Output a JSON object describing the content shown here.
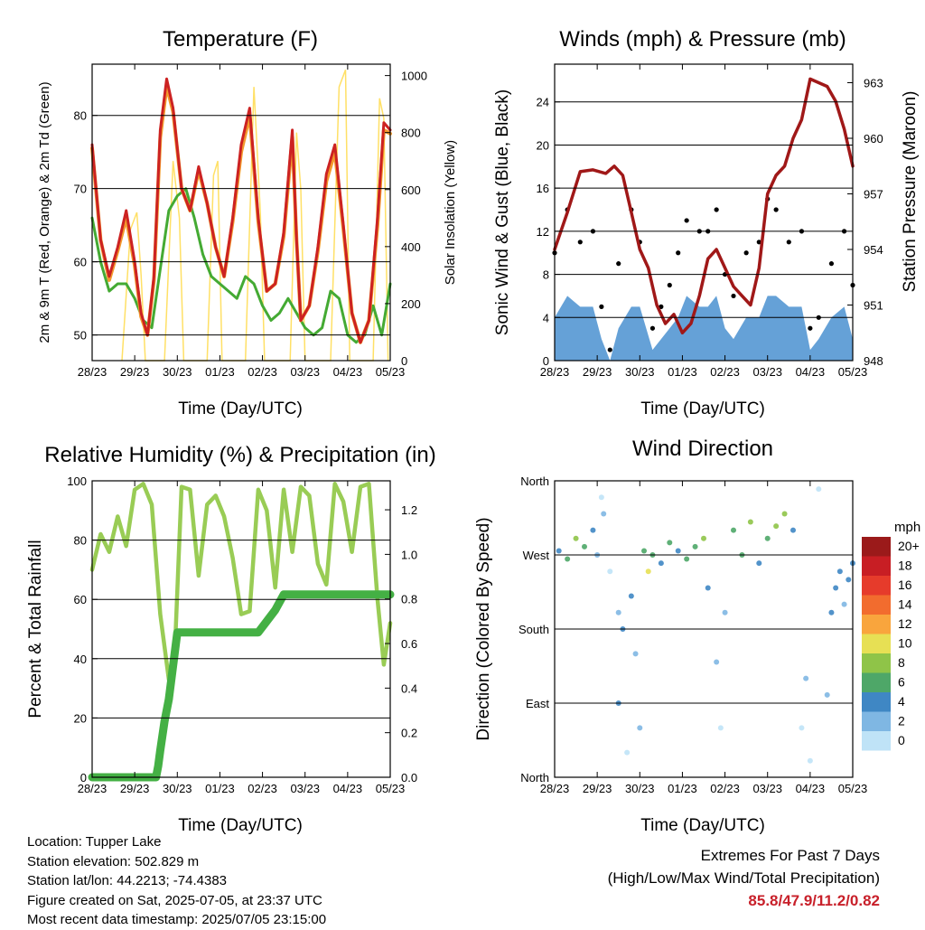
{
  "colors": {
    "temp_red": "#cc2222",
    "temp_orange": "#f39a2d",
    "dewpoint_green": "#44aa33",
    "solar_yellow": "#ffe066",
    "wind_blue": "#4a90d0",
    "gust_black": "#000000",
    "pressure_maroon": "#a01818",
    "rh_lightgreen": "#99cc55",
    "precip_green": "#44b044",
    "extremes_red": "#c8202a"
  },
  "chart_data": [
    {
      "type": "line",
      "title": "Temperature (F)",
      "xlabel": "Time (Day/UTC)",
      "ylabel": "2m & 9m T (Red, Orange) & 2m Td (Green)",
      "y2label": "Solar Insolation (Yellow)",
      "x_ticks": [
        "28/23",
        "29/23",
        "30/23",
        "01/23",
        "02/23",
        "03/23",
        "04/23",
        "05/23"
      ],
      "y_ticks": [
        50,
        60,
        70,
        80
      ],
      "y2_ticks": [
        0,
        200,
        400,
        600,
        800,
        1000
      ],
      "ylim": [
        46.5,
        87
      ],
      "y2lim": [
        0,
        1040
      ],
      "grid": true,
      "series": [
        {
          "name": "2m T",
          "color": "#cc2222",
          "x": [
            0,
            0.2,
            0.4,
            0.6,
            0.8,
            1.0,
            1.15,
            1.3,
            1.45,
            1.6,
            1.75,
            1.9,
            2.1,
            2.3,
            2.5,
            2.7,
            2.9,
            3.1,
            3.3,
            3.5,
            3.7,
            3.9,
            4.1,
            4.3,
            4.5,
            4.7,
            4.8,
            4.9,
            5.1,
            5.3,
            5.5,
            5.7,
            5.9,
            6.1,
            6.3,
            6.5,
            6.7,
            6.85,
            7.0
          ],
          "y": [
            76,
            63,
            58,
            62,
            67,
            60,
            53,
            50,
            58,
            78,
            85,
            81,
            70,
            67,
            73,
            68,
            62,
            58,
            66,
            76,
            81,
            66,
            56,
            57,
            64,
            78,
            63,
            52,
            54,
            62,
            72,
            76,
            65,
            53,
            49,
            52,
            66,
            79,
            78
          ]
        },
        {
          "name": "9m T",
          "color": "#f39a2d",
          "x": [
            0,
            0.2,
            0.4,
            0.6,
            0.8,
            1.0,
            1.15,
            1.3,
            1.45,
            1.6,
            1.75,
            1.9,
            2.1,
            2.3,
            2.5,
            2.7,
            2.9,
            3.1,
            3.3,
            3.5,
            3.7,
            3.9,
            4.1,
            4.3,
            4.5,
            4.7,
            4.8,
            4.9,
            5.1,
            5.3,
            5.5,
            5.7,
            5.9,
            6.1,
            6.3,
            6.5,
            6.7,
            6.85,
            7.0
          ],
          "y": [
            75.5,
            63,
            57.5,
            61.5,
            66,
            59.5,
            52.5,
            50,
            57.5,
            77,
            84,
            80.5,
            70,
            67,
            72.5,
            68,
            62,
            58,
            65.5,
            75,
            80,
            65.5,
            56,
            57,
            63.5,
            77,
            63,
            52,
            54,
            61.5,
            71,
            75,
            64.5,
            53,
            49,
            52,
            65,
            78,
            77.5
          ]
        },
        {
          "name": "2m Td",
          "color": "#44aa33",
          "x": [
            0,
            0.2,
            0.4,
            0.6,
            0.8,
            1.0,
            1.2,
            1.4,
            1.6,
            1.8,
            2.0,
            2.2,
            2.4,
            2.6,
            2.8,
            3.0,
            3.2,
            3.4,
            3.6,
            3.8,
            4.0,
            4.2,
            4.4,
            4.6,
            4.8,
            5.0,
            5.2,
            5.4,
            5.6,
            5.8,
            6.0,
            6.2,
            6.4,
            6.6,
            6.8,
            7.0
          ],
          "y": [
            66,
            60,
            56,
            57,
            57,
            55,
            52,
            51,
            59,
            67,
            69,
            70,
            66,
            61,
            58,
            57,
            56,
            55,
            58,
            57,
            54,
            52,
            53,
            55,
            53,
            51,
            50,
            51,
            56,
            55,
            50,
            49,
            50,
            54,
            50,
            57
          ]
        },
        {
          "name": "Solar Insolation",
          "color": "#ffe066",
          "axis": "y2",
          "x": [
            0.7,
            0.9,
            1.05,
            1.15,
            1.25,
            1.7,
            1.9,
            2.05,
            2.15,
            2.7,
            2.85,
            2.95,
            3.05,
            3.6,
            3.8,
            3.95,
            4.05,
            4.65,
            4.8,
            4.9,
            5.0,
            5.6,
            5.8,
            5.95,
            6.05,
            6.6,
            6.75,
            6.85,
            6.95
          ],
          "y": [
            0,
            460,
            520,
            300,
            0,
            0,
            700,
            500,
            0,
            0,
            650,
            700,
            0,
            0,
            960,
            520,
            0,
            0,
            800,
            600,
            0,
            0,
            960,
            1020,
            0,
            0,
            920,
            850,
            0
          ]
        }
      ]
    },
    {
      "type": "line",
      "title": "Winds (mph) & Pressure (mb)",
      "xlabel": "Time (Day/UTC)",
      "ylabel": "Sonic Wind & Gust (Blue, Black)",
      "y2label": "Station Pressure (Maroon)",
      "x_ticks": [
        "28/23",
        "29/23",
        "30/23",
        "01/23",
        "02/23",
        "03/23",
        "04/23",
        "05/23"
      ],
      "y_ticks": [
        0,
        4,
        8,
        12,
        16,
        20,
        24
      ],
      "y2_ticks": [
        948,
        951,
        954,
        957,
        960,
        963
      ],
      "ylim": [
        0,
        27.5
      ],
      "y2lim": [
        948,
        964
      ],
      "grid": true,
      "series": [
        {
          "name": "Sonic Wind",
          "color": "#4a90d0",
          "x": [
            0,
            0.3,
            0.6,
            0.9,
            1.1,
            1.3,
            1.5,
            1.8,
            2.0,
            2.3,
            2.5,
            2.7,
            2.9,
            3.1,
            3.4,
            3.6,
            3.8,
            4.0,
            4.2,
            4.5,
            4.8,
            5.0,
            5.2,
            5.5,
            5.8,
            6.0,
            6.2,
            6.5,
            6.8,
            7.0
          ],
          "y": [
            4,
            6,
            5,
            5,
            2,
            0,
            3,
            5,
            5,
            1,
            2,
            3,
            4,
            6,
            5,
            5,
            6,
            3,
            2,
            4,
            4,
            6,
            6,
            5,
            5,
            1,
            2,
            4,
            5,
            2
          ]
        },
        {
          "name": "Gust",
          "color": "#000000",
          "x": [
            0,
            0.3,
            0.6,
            0.9,
            1.1,
            1.3,
            1.5,
            1.8,
            2.0,
            2.3,
            2.5,
            2.7,
            2.9,
            3.1,
            3.4,
            3.6,
            3.8,
            4.0,
            4.2,
            4.5,
            4.8,
            5.0,
            5.2,
            5.5,
            5.8,
            6.0,
            6.2,
            6.5,
            6.8,
            7.0
          ],
          "y": [
            10,
            14,
            11,
            12,
            5,
            1,
            9,
            14,
            11,
            3,
            5,
            7,
            10,
            13,
            12,
            12,
            14,
            8,
            6,
            10,
            11,
            15,
            14,
            11,
            12,
            3,
            4,
            9,
            12,
            7
          ]
        },
        {
          "name": "Station Pressure",
          "color": "#a01818",
          "axis": "y2",
          "x": [
            0,
            0.3,
            0.6,
            0.9,
            1.2,
            1.4,
            1.6,
            1.8,
            2.0,
            2.2,
            2.4,
            2.6,
            2.8,
            3.0,
            3.2,
            3.4,
            3.6,
            3.8,
            4.0,
            4.2,
            4.4,
            4.6,
            4.8,
            5.0,
            5.2,
            5.4,
            5.6,
            5.8,
            6.0,
            6.2,
            6.4,
            6.6,
            6.8,
            7.0
          ],
          "y": [
            954,
            956,
            958.2,
            958.3,
            958.1,
            958.5,
            958,
            956,
            954,
            953,
            951,
            950,
            950.5,
            949.5,
            950,
            951.5,
            953.5,
            954,
            953,
            952,
            951.5,
            951,
            953,
            957,
            958,
            958.5,
            960,
            961,
            963.2,
            963,
            962.8,
            962,
            960.5,
            958.5
          ]
        }
      ]
    },
    {
      "type": "line",
      "title": "Relative Humidity (%) & Precipitation (in)",
      "xlabel": "Time (Day/UTC)",
      "ylabel": "Percent & Total Rainfall",
      "x_ticks": [
        "28/23",
        "29/23",
        "30/23",
        "01/23",
        "02/23",
        "03/23",
        "04/23",
        "05/23"
      ],
      "y_ticks": [
        0,
        20,
        40,
        60,
        80,
        100
      ],
      "y2_ticks": [
        0.0,
        0.2,
        0.4,
        0.6,
        0.8,
        1.0,
        1.2
      ],
      "ylim": [
        0,
        100
      ],
      "y2lim": [
        0,
        1.33
      ],
      "grid": true,
      "series": [
        {
          "name": "Relative Humidity",
          "color": "#99cc55",
          "x": [
            0,
            0.2,
            0.4,
            0.6,
            0.8,
            1.0,
            1.2,
            1.4,
            1.6,
            1.8,
            1.95,
            2.1,
            2.3,
            2.5,
            2.7,
            2.9,
            3.1,
            3.3,
            3.5,
            3.7,
            3.9,
            4.1,
            4.3,
            4.5,
            4.7,
            4.9,
            5.1,
            5.3,
            5.5,
            5.7,
            5.9,
            6.1,
            6.3,
            6.5,
            6.7,
            6.85,
            7.0
          ],
          "y": [
            70,
            82,
            76,
            88,
            78,
            97,
            99,
            92,
            55,
            33,
            45,
            98,
            97,
            68,
            92,
            95,
            88,
            74,
            55,
            56,
            97,
            90,
            64,
            97,
            76,
            98,
            95,
            72,
            65,
            99,
            93,
            76,
            98,
            99,
            60,
            38,
            52
          ]
        },
        {
          "name": "Total Precipitation",
          "color": "#44b044",
          "axis": "y2",
          "x": [
            0,
            1.3,
            1.5,
            1.55,
            1.6,
            1.7,
            1.8,
            1.9,
            2.0,
            2.1,
            3.0,
            3.9,
            4.1,
            4.3,
            4.5,
            4.6,
            5.0,
            6.0,
            7.0
          ],
          "y": [
            0,
            0,
            0,
            0.05,
            0.12,
            0.25,
            0.35,
            0.5,
            0.65,
            0.65,
            0.65,
            0.65,
            0.7,
            0.75,
            0.82,
            0.82,
            0.82,
            0.82,
            0.82
          ]
        }
      ]
    },
    {
      "type": "scatter",
      "title": "Wind Direction",
      "xlabel": "Time (Day/UTC)",
      "ylabel": "Direction (Colored By Speed)",
      "x_ticks": [
        "28/23",
        "29/23",
        "30/23",
        "01/23",
        "02/23",
        "03/23",
        "04/23",
        "05/23"
      ],
      "y_ticks": [
        "North",
        "East",
        "South",
        "West",
        "North"
      ],
      "ylim": [
        0,
        360
      ],
      "grid": true,
      "legend_title": "mph",
      "legend_position": "right",
      "legend_levels": [
        "20+",
        "18",
        "16",
        "14",
        "12",
        "10",
        "8",
        "6",
        "4",
        "2",
        "0"
      ],
      "legend_colors": [
        "#9b1a1a",
        "#c81e24",
        "#e63b2b",
        "#f26c2e",
        "#f9a53d",
        "#e7e054",
        "#8fc448",
        "#4ea768",
        "#3f87c4",
        "#7fb7e3",
        "#bfe3f7"
      ],
      "points": [
        [
          0.1,
          275,
          4
        ],
        [
          0.3,
          265,
          6
        ],
        [
          0.5,
          290,
          8
        ],
        [
          0.7,
          280,
          6
        ],
        [
          0.9,
          300,
          4
        ],
        [
          1.0,
          270,
          2
        ],
        [
          1.1,
          340,
          0
        ],
        [
          1.15,
          320,
          2
        ],
        [
          1.3,
          250,
          0
        ],
        [
          1.5,
          200,
          2
        ],
        [
          1.5,
          90,
          4
        ],
        [
          1.6,
          180,
          4
        ],
        [
          1.7,
          30,
          0
        ],
        [
          1.8,
          220,
          4
        ],
        [
          1.9,
          150,
          2
        ],
        [
          2.0,
          60,
          2
        ],
        [
          2.1,
          275,
          6
        ],
        [
          2.2,
          250,
          10
        ],
        [
          2.3,
          270,
          6
        ],
        [
          2.5,
          260,
          4
        ],
        [
          2.7,
          285,
          6
        ],
        [
          2.9,
          275,
          4
        ],
        [
          3.1,
          265,
          6
        ],
        [
          3.3,
          280,
          6
        ],
        [
          3.5,
          290,
          8
        ],
        [
          3.6,
          230,
          4
        ],
        [
          3.8,
          140,
          2
        ],
        [
          3.9,
          60,
          0
        ],
        [
          4.0,
          200,
          2
        ],
        [
          4.2,
          300,
          6
        ],
        [
          4.4,
          270,
          6
        ],
        [
          4.6,
          310,
          8
        ],
        [
          4.8,
          260,
          4
        ],
        [
          5.0,
          290,
          6
        ],
        [
          5.2,
          305,
          8
        ],
        [
          5.4,
          320,
          8
        ],
        [
          5.6,
          300,
          4
        ],
        [
          5.8,
          60,
          0
        ],
        [
          5.9,
          120,
          2
        ],
        [
          6.0,
          20,
          0
        ],
        [
          6.2,
          350,
          0
        ],
        [
          6.4,
          100,
          2
        ],
        [
          6.5,
          200,
          4
        ],
        [
          6.6,
          230,
          4
        ],
        [
          6.7,
          250,
          4
        ],
        [
          6.8,
          210,
          2
        ],
        [
          6.9,
          240,
          4
        ],
        [
          7.0,
          260,
          4
        ]
      ]
    }
  ],
  "info": {
    "location": "Location: Tupper Lake",
    "elevation": "Station elevation: 502.829 m",
    "latlon": "Station lat/lon: 44.2213; -74.4383",
    "created": "Figure created on Sat, 2025-07-05, at 23:37 UTC",
    "recent": "Most recent data timestamp: 2025/07/05 23:15:00"
  },
  "extremes": {
    "title": "Extremes For Past 7 Days",
    "subtitle": "(High/Low/Max Wind/Total Precipitation)",
    "values": "85.8/47.9/11.2/0.82"
  }
}
